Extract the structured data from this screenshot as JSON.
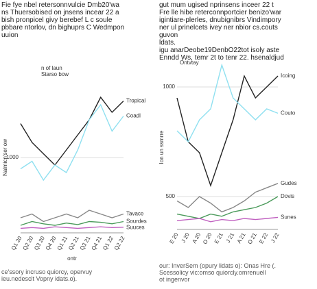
{
  "header_left": [
    "Fie fye nbel retersonnvulcie Dmb20'wa",
    "ns Thuersobised on jnsens incear 22 a",
    "bish pronpicel givy berebef L c soule",
    "pbbare ntorlov, dn bighuprs C Wedmpon",
    "uuion"
  ],
  "header_right": [
    "gut mum ugised nprinsens inceer 22 t",
    "Fre lle hibe reterconnportcier benizo'war",
    "igintiare-plerles, dnubignibrs Vindimpory",
    "ner ul prinelcets ivey ner nbior cs.couts",
    "guvon",
    "ldats.",
    "igu anarDeobe19DenbO22tot isoly aste",
    "Enndd Ws, temr 2t to tenr 22. hsenaldjud"
  ],
  "footer_left": [
    "ce'ssory incruso quiorcy, opervuy",
    "ieu.nedesclt Vopny idats.o)."
  ],
  "footer_right": [
    "our: InverSem (opury lidats o): Onas Hre (.",
    "Scessolicy vic:omso quiorcly.omrenuell",
    "ot ingenvor"
  ],
  "chart_data": [
    {
      "type": "line",
      "title": "n of laun",
      "subtitle": "Starso bow",
      "y_label": "Nalmicn'ser ow",
      "x_label": "ontr",
      "categories": [
        "Q1 20",
        "Q2 20",
        "Q3 20",
        "Q4 20",
        "Q1 21",
        "Q2 21",
        "Q3 21",
        "Q4 21",
        "Q1 22",
        "Q2 22"
      ],
      "ylim": [
        0,
        2000
      ],
      "yticks": [
        1000
      ],
      "series": [
        {
          "name": "Tropical",
          "color": "#222222",
          "values": [
            1450,
            1200,
            1050,
            900,
            1100,
            1300,
            1500,
            1800,
            1600,
            1750
          ]
        },
        {
          "name": "Coadl",
          "color": "#8fe0f0",
          "values": [
            850,
            950,
            700,
            900,
            800,
            1100,
            1500,
            1700,
            1350,
            1550
          ]
        },
        {
          "name": "Tavace",
          "color": "#888888",
          "values": [
            200,
            250,
            150,
            200,
            250,
            200,
            300,
            250,
            200,
            250
          ]
        },
        {
          "name": "Sourdes",
          "color": "#4a9a5a",
          "values": [
            100,
            150,
            120,
            100,
            130,
            110,
            150,
            140,
            120,
            150
          ]
        },
        {
          "name": "Suuces",
          "color": "#c060c0",
          "values": [
            60,
            70,
            60,
            80,
            70,
            60,
            70,
            80,
            70,
            75
          ]
        }
      ]
    },
    {
      "type": "line",
      "title": "Ontvtay",
      "y_label": "Ion un ssmrre",
      "categories": [
        "E 20",
        "J 20",
        "A 20",
        "O 20",
        "E 21",
        "J 21",
        "A 21",
        "O 21",
        "E 22",
        "J 22"
      ],
      "ylim": [
        350,
        1100
      ],
      "yticks": [
        500,
        1000
      ],
      "series": [
        {
          "name": "Icoing",
          "color": "#222222",
          "values": [
            950,
            750,
            700,
            550,
            700,
            850,
            1050,
            950,
            1000,
            1050
          ]
        },
        {
          "name": "Couto",
          "color": "#8fe0f0",
          "values": [
            800,
            750,
            850,
            900,
            1100,
            950,
            900,
            850,
            900,
            880
          ]
        },
        {
          "name": "Gudes",
          "color": "#888888",
          "values": [
            480,
            450,
            500,
            470,
            430,
            450,
            480,
            520,
            540,
            560
          ]
        },
        {
          "name": "Dovis",
          "color": "#4a9a5a",
          "values": [
            420,
            410,
            400,
            420,
            410,
            430,
            440,
            450,
            470,
            500
          ]
        },
        {
          "name": "Sunes",
          "color": "#c060c0",
          "values": [
            390,
            395,
            400,
            385,
            395,
            390,
            400,
            395,
            400,
            405
          ]
        }
      ]
    }
  ]
}
